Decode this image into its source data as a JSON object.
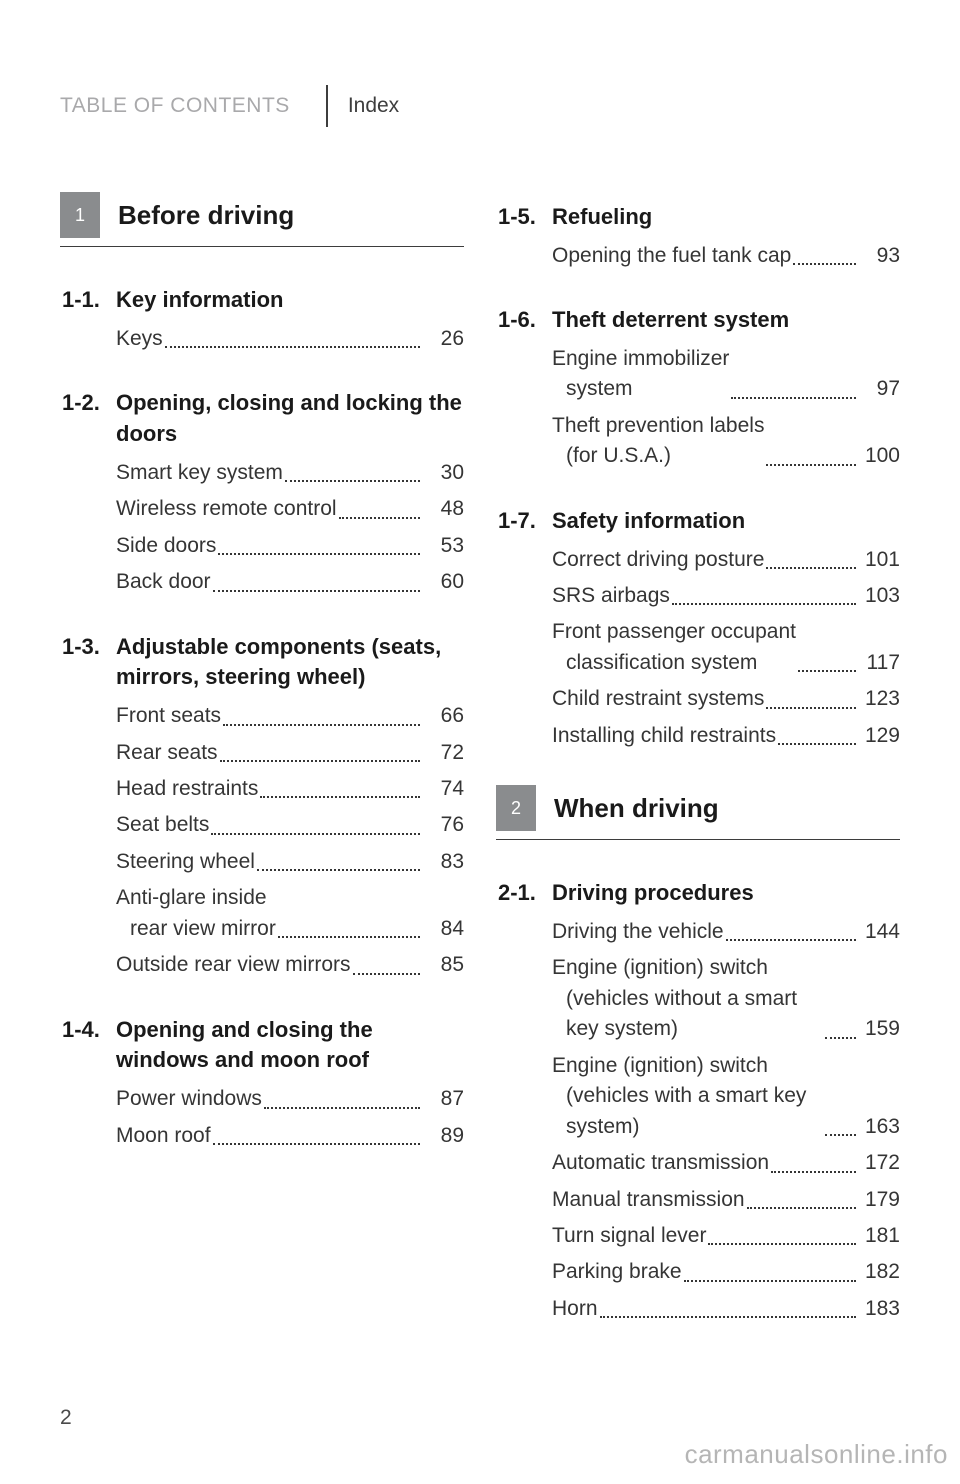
{
  "header": {
    "toc_label": "TABLE OF CONTENTS",
    "index_label": "Index"
  },
  "page_number": "2",
  "watermark": "carmanualsonline.info",
  "chapters": [
    {
      "num": "1",
      "title": "Before driving",
      "sections": [
        {
          "num": "1-1.",
          "title": "Key information",
          "entries": [
            {
              "label": "Keys",
              "page": "26"
            }
          ]
        },
        {
          "num": "1-2.",
          "title": "Opening, closing and locking the doors",
          "entries": [
            {
              "label": "Smart key system",
              "page": "30"
            },
            {
              "label": "Wireless remote control",
              "page": "48"
            },
            {
              "label": "Side doors",
              "page": "53"
            },
            {
              "label": "Back door",
              "page": "60"
            }
          ]
        },
        {
          "num": "1-3.",
          "title": "Adjustable components (seats, mirrors, steering wheel)",
          "entries": [
            {
              "label": "Front seats",
              "page": "66"
            },
            {
              "label": "Rear seats",
              "page": "72"
            },
            {
              "label": "Head restraints",
              "page": "74"
            },
            {
              "label": "Seat belts",
              "page": "76"
            },
            {
              "label": "Steering wheel",
              "page": "83"
            },
            {
              "label": "Anti-glare inside",
              "sub": "rear view mirror",
              "page": "84"
            },
            {
              "label": "Outside rear view mirrors",
              "page": "85"
            }
          ]
        },
        {
          "num": "1-4.",
          "title": "Opening and closing the windows and moon roof",
          "entries": [
            {
              "label": "Power windows",
              "page": "87"
            },
            {
              "label": "Moon roof",
              "page": "89"
            }
          ]
        },
        {
          "num": "1-5.",
          "title": "Refueling",
          "entries": [
            {
              "label": "Opening the fuel tank cap",
              "page": "93"
            }
          ]
        },
        {
          "num": "1-6.",
          "title": "Theft deterrent system",
          "entries": [
            {
              "label": "Engine immobilizer",
              "sub": "system",
              "page": "97"
            },
            {
              "label": "Theft prevention labels",
              "sub": "(for U.S.A.)",
              "page": "100"
            }
          ]
        },
        {
          "num": "1-7.",
          "title": "Safety information",
          "entries": [
            {
              "label": "Correct driving posture",
              "page": "101"
            },
            {
              "label": "SRS airbags",
              "page": "103"
            },
            {
              "label": "Front passenger occupant",
              "sub": "classification system",
              "page": "117"
            },
            {
              "label": "Child restraint systems",
              "page": "123"
            },
            {
              "label": "Installing child restraints",
              "page": "129"
            }
          ]
        }
      ]
    },
    {
      "num": "2",
      "title": "When driving",
      "sections": [
        {
          "num": "2-1.",
          "title": "Driving procedures",
          "entries": [
            {
              "label": "Driving the vehicle",
              "page": "144"
            },
            {
              "label": "Engine (ignition) switch",
              "sub": "(vehicles without a smart key system)",
              "page": "159"
            },
            {
              "label": "Engine (ignition) switch",
              "sub": "(vehicles with a smart key system)",
              "page": "163"
            },
            {
              "label": "Automatic transmission",
              "page": "172"
            },
            {
              "label": "Manual transmission",
              "page": "179"
            },
            {
              "label": "Turn signal lever",
              "page": "181"
            },
            {
              "label": "Parking brake",
              "page": "182"
            },
            {
              "label": "Horn",
              "page": "183"
            }
          ]
        }
      ]
    }
  ],
  "layout": {
    "left_col_sections": [
      "1-1.",
      "1-2.",
      "1-3.",
      "1-4."
    ],
    "right_col_sections": [
      "1-5.",
      "1-6.",
      "1-7."
    ]
  }
}
